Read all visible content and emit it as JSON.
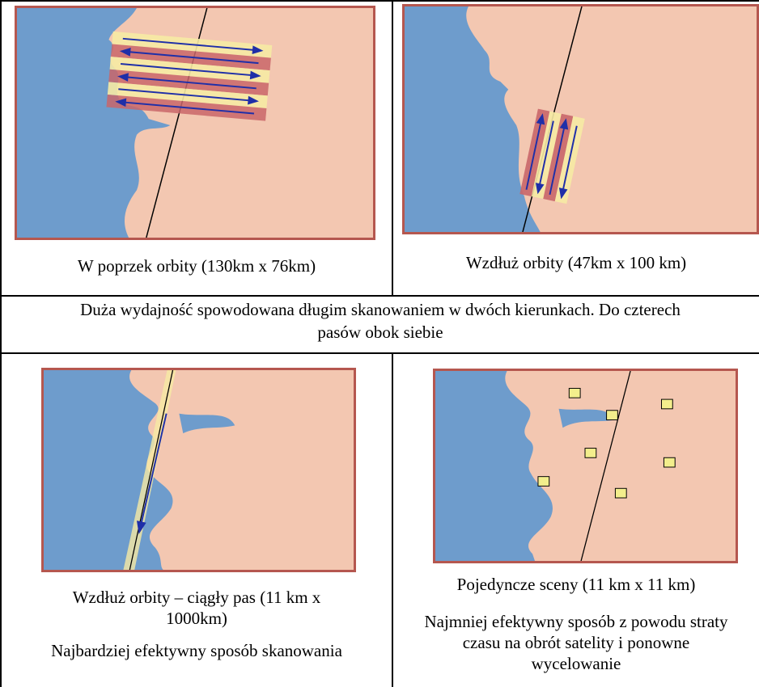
{
  "panels": {
    "across_orbit": {
      "caption": "W poprzek orbity (130km x 76km)"
    },
    "along_orbit": {
      "caption": "Wzdłuż orbity (47km x 100 km)"
    },
    "continuous_strip": {
      "caption_line1": "Wzdłuż orbity – ciągły pas (11 km x",
      "caption_line2": "1000km)",
      "note": "Najbardziej efektywny sposób skanowania"
    },
    "single_scenes": {
      "caption": "Pojedyncze sceny (11 km x 11 km)",
      "note_line1": "Najmniej efektywny sposób z powodu straty",
      "note_line2": "czasu na obrót satelity i ponowne",
      "note_line3": "wycelowanie"
    }
  },
  "summary": {
    "line1": "Duża wydajność spowodowana długim skanowaniem w dwóch kierunkach. Do czterech",
    "line2": "pasów obok siebie"
  },
  "colors": {
    "water": "#6e9ccc",
    "land": "#f3c7b1",
    "border": "#b5574f",
    "swath_yellow": "#f6eaa4",
    "swath_red": "#c9666a",
    "arrow": "#1f2fa8",
    "scene_square": "#f3ee8c"
  }
}
